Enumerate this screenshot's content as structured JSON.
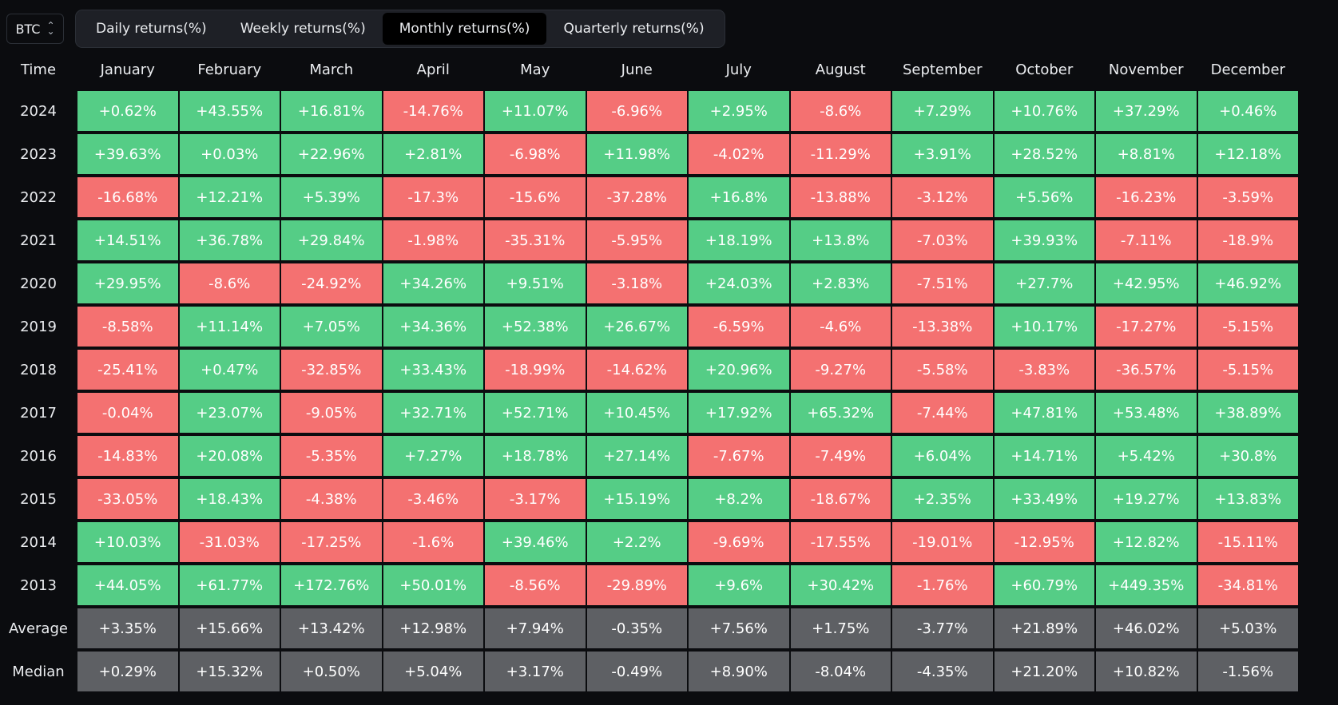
{
  "asset_selector": {
    "value": "BTC"
  },
  "tabs": [
    {
      "label": "Daily returns(%)",
      "active": false
    },
    {
      "label": "Weekly returns(%)",
      "active": false
    },
    {
      "label": "Monthly returns(%)",
      "active": true
    },
    {
      "label": "Quarterly returns(%)",
      "active": false
    }
  ],
  "colors": {
    "positive": "#55cd86",
    "negative": "#f47171",
    "summary": "#5e6064",
    "background": "#0b0c0f"
  },
  "table": {
    "corner_label": "Time",
    "months": [
      "January",
      "February",
      "March",
      "April",
      "May",
      "June",
      "July",
      "August",
      "September",
      "October",
      "November",
      "December"
    ],
    "rows": [
      {
        "label": "2024",
        "values": [
          "+0.62%",
          "+43.55%",
          "+16.81%",
          "-14.76%",
          "+11.07%",
          "-6.96%",
          "+2.95%",
          "-8.6%",
          "+7.29%",
          "+10.76%",
          "+37.29%",
          "+0.46%"
        ]
      },
      {
        "label": "2023",
        "values": [
          "+39.63%",
          "+0.03%",
          "+22.96%",
          "+2.81%",
          "-6.98%",
          "+11.98%",
          "-4.02%",
          "-11.29%",
          "+3.91%",
          "+28.52%",
          "+8.81%",
          "+12.18%"
        ]
      },
      {
        "label": "2022",
        "values": [
          "-16.68%",
          "+12.21%",
          "+5.39%",
          "-17.3%",
          "-15.6%",
          "-37.28%",
          "+16.8%",
          "-13.88%",
          "-3.12%",
          "+5.56%",
          "-16.23%",
          "-3.59%"
        ]
      },
      {
        "label": "2021",
        "values": [
          "+14.51%",
          "+36.78%",
          "+29.84%",
          "-1.98%",
          "-35.31%",
          "-5.95%",
          "+18.19%",
          "+13.8%",
          "-7.03%",
          "+39.93%",
          "-7.11%",
          "-18.9%"
        ]
      },
      {
        "label": "2020",
        "values": [
          "+29.95%",
          "-8.6%",
          "-24.92%",
          "+34.26%",
          "+9.51%",
          "-3.18%",
          "+24.03%",
          "+2.83%",
          "-7.51%",
          "+27.7%",
          "+42.95%",
          "+46.92%"
        ]
      },
      {
        "label": "2019",
        "values": [
          "-8.58%",
          "+11.14%",
          "+7.05%",
          "+34.36%",
          "+52.38%",
          "+26.67%",
          "-6.59%",
          "-4.6%",
          "-13.38%",
          "+10.17%",
          "-17.27%",
          "-5.15%"
        ]
      },
      {
        "label": "2018",
        "values": [
          "-25.41%",
          "+0.47%",
          "-32.85%",
          "+33.43%",
          "-18.99%",
          "-14.62%",
          "+20.96%",
          "-9.27%",
          "-5.58%",
          "-3.83%",
          "-36.57%",
          "-5.15%"
        ]
      },
      {
        "label": "2017",
        "values": [
          "-0.04%",
          "+23.07%",
          "-9.05%",
          "+32.71%",
          "+52.71%",
          "+10.45%",
          "+17.92%",
          "+65.32%",
          "-7.44%",
          "+47.81%",
          "+53.48%",
          "+38.89%"
        ]
      },
      {
        "label": "2016",
        "values": [
          "-14.83%",
          "+20.08%",
          "-5.35%",
          "+7.27%",
          "+18.78%",
          "+27.14%",
          "-7.67%",
          "-7.49%",
          "+6.04%",
          "+14.71%",
          "+5.42%",
          "+30.8%"
        ]
      },
      {
        "label": "2015",
        "values": [
          "-33.05%",
          "+18.43%",
          "-4.38%",
          "-3.46%",
          "-3.17%",
          "+15.19%",
          "+8.2%",
          "-18.67%",
          "+2.35%",
          "+33.49%",
          "+19.27%",
          "+13.83%"
        ]
      },
      {
        "label": "2014",
        "values": [
          "+10.03%",
          "-31.03%",
          "-17.25%",
          "-1.6%",
          "+39.46%",
          "+2.2%",
          "-9.69%",
          "-17.55%",
          "-19.01%",
          "-12.95%",
          "+12.82%",
          "-15.11%"
        ]
      },
      {
        "label": "2013",
        "values": [
          "+44.05%",
          "+61.77%",
          "+172.76%",
          "+50.01%",
          "-8.56%",
          "-29.89%",
          "+9.6%",
          "+30.42%",
          "-1.76%",
          "+60.79%",
          "+449.35%",
          "-34.81%"
        ]
      }
    ],
    "summary_rows": [
      {
        "label": "Average",
        "values": [
          "+3.35%",
          "+15.66%",
          "+13.42%",
          "+12.98%",
          "+7.94%",
          "-0.35%",
          "+7.56%",
          "+1.75%",
          "-3.77%",
          "+21.89%",
          "+46.02%",
          "+5.03%"
        ]
      },
      {
        "label": "Median",
        "values": [
          "+0.29%",
          "+15.32%",
          "+0.50%",
          "+5.04%",
          "+3.17%",
          "-0.49%",
          "+8.90%",
          "-8.04%",
          "-4.35%",
          "+21.20%",
          "+10.82%",
          "-1.56%"
        ]
      }
    ]
  }
}
